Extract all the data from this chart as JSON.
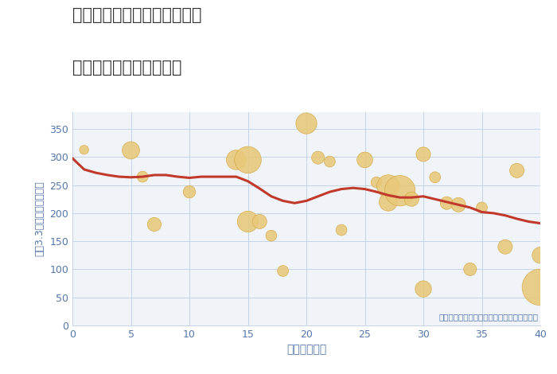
{
  "title_line1": "東京都千代田区神田岩本町の",
  "title_line2": "築年数別中古戸建て価格",
  "xlabel": "築年数（年）",
  "ylabel": "坪（3.3㎡）単価（万円）",
  "annotation": "円の大きさは、取引のあった物件面積を示す",
  "fig_bg_color": "#ffffff",
  "plot_bg_color": "#f0f4f9",
  "xlim": [
    0,
    40
  ],
  "ylim": [
    0,
    380
  ],
  "xticks": [
    0,
    5,
    10,
    15,
    20,
    25,
    30,
    35,
    40
  ],
  "yticks": [
    0,
    50,
    100,
    150,
    200,
    250,
    300,
    350
  ],
  "line_x": [
    0,
    1,
    2,
    3,
    4,
    5,
    6,
    7,
    8,
    9,
    10,
    11,
    12,
    13,
    14,
    15,
    16,
    17,
    18,
    19,
    20,
    21,
    22,
    23,
    24,
    25,
    26,
    27,
    28,
    29,
    30,
    31,
    32,
    33,
    34,
    35,
    36,
    37,
    38,
    39,
    40
  ],
  "line_y": [
    298,
    278,
    272,
    268,
    265,
    264,
    265,
    268,
    268,
    265,
    263,
    265,
    265,
    265,
    265,
    257,
    244,
    230,
    222,
    218,
    222,
    230,
    238,
    243,
    245,
    243,
    238,
    232,
    228,
    228,
    230,
    225,
    220,
    215,
    210,
    202,
    200,
    196,
    190,
    185,
    182
  ],
  "scatter_x": [
    1,
    5,
    6,
    7,
    10,
    14,
    15,
    15,
    16,
    17,
    18,
    20,
    21,
    22,
    23,
    25,
    26,
    27,
    27,
    28,
    29,
    30,
    30,
    31,
    32,
    33,
    34,
    35,
    37,
    38,
    40,
    40
  ],
  "scatter_y": [
    313,
    312,
    265,
    180,
    238,
    295,
    185,
    295,
    185,
    160,
    97,
    360,
    299,
    292,
    170,
    295,
    255,
    248,
    220,
    240,
    225,
    305,
    65,
    264,
    218,
    215,
    100,
    210,
    140,
    276,
    125,
    68
  ],
  "scatter_size": [
    15,
    55,
    22,
    35,
    28,
    70,
    80,
    130,
    38,
    22,
    22,
    80,
    30,
    22,
    22,
    45,
    22,
    95,
    60,
    170,
    38,
    38,
    48,
    22,
    30,
    38,
    30,
    22,
    38,
    38,
    48,
    240
  ],
  "bubble_color": "#e8c87a",
  "bubble_edge_color": "#d4a843",
  "line_color": "#c0392b",
  "grid_color": "#c5d5e5",
  "tick_color": "#5577aa",
  "label_color": "#5577aa",
  "annotation_color": "#5577aa",
  "title_color": "#333333"
}
